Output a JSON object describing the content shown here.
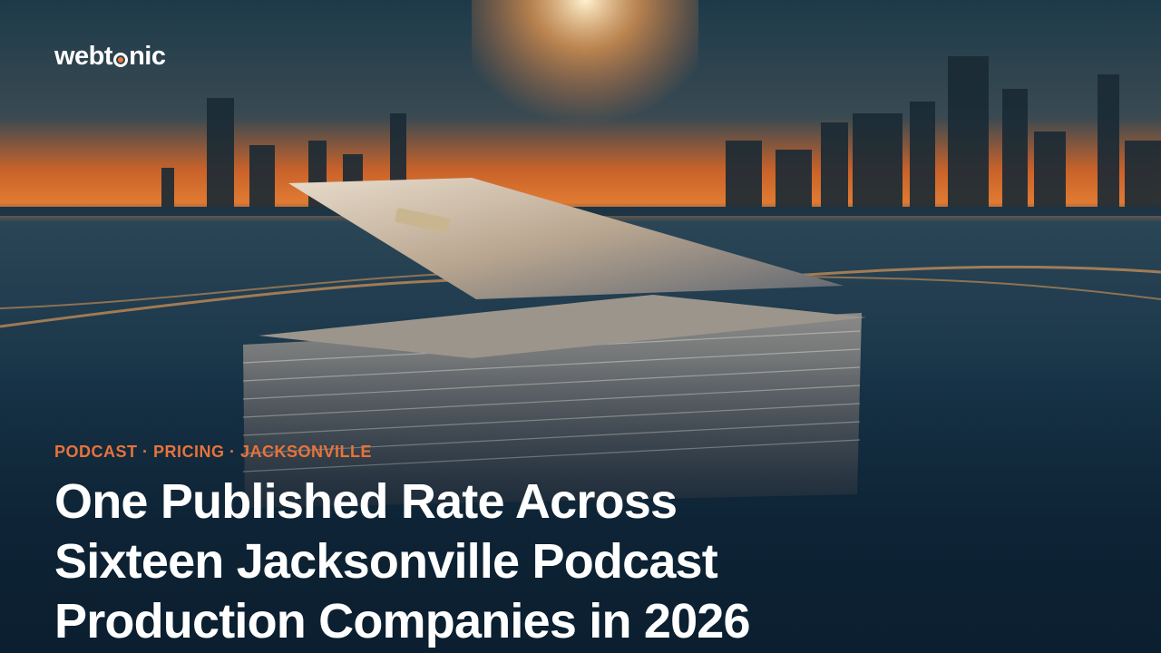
{
  "logo": {
    "start": "webt",
    "end": "nic"
  },
  "tags": "PODCAST · PRICING · JACKSONVILLE",
  "title": "One Published Rate Across Sixteen Jacksonville Podcast Production Companies in 2026"
}
